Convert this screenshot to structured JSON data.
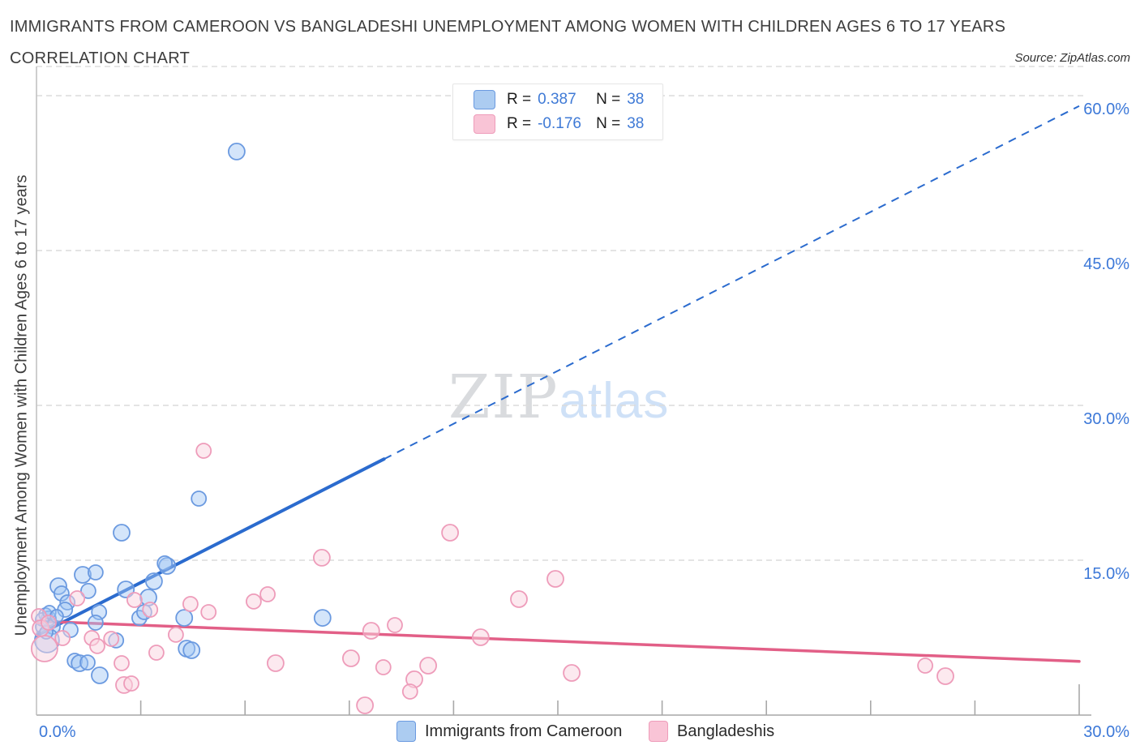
{
  "header": {
    "title": "IMMIGRANTS FROM CAMEROON VS BANGLADESHI UNEMPLOYMENT AMONG WOMEN WITH CHILDREN AGES 6 TO 17 YEARS",
    "subtitle": "CORRELATION CHART",
    "source": "Source: ZipAtlas.com"
  },
  "watermark": {
    "part1": "ZIP",
    "part2": "atlas"
  },
  "legend_box": {
    "rows": [
      {
        "series": "Immigrants from Cameroon",
        "r_label": "R =",
        "r_value": "0.387",
        "n_label": "N =",
        "n_value": "38"
      },
      {
        "series": "Bangladeshis",
        "r_label": "R =",
        "r_value": "-0.176",
        "n_label": "N =",
        "n_value": "38"
      }
    ]
  },
  "axes": {
    "y_title": "Unemployment Among Women with Children Ages 6 to 17 years",
    "x_min_label": "0.0%",
    "x_max_label": "30.0%",
    "y_tick_labels": [
      {
        "value": 60,
        "label": "60.0%"
      },
      {
        "value": 45,
        "label": "45.0%"
      },
      {
        "value": 30,
        "label": "30.0%"
      },
      {
        "value": 15,
        "label": "15.0%"
      }
    ]
  },
  "bottom_legend": {
    "items": [
      {
        "label": "Immigrants from Cameroon",
        "color": "blue"
      },
      {
        "label": "Bangladeshis",
        "color": "pink"
      }
    ]
  },
  "chart_data": {
    "type": "scatter",
    "title": "Immigrants from Cameroon vs Bangladeshi Unemployment Among Women with Children Ages 6 to 17 years",
    "xlabel": "Immigrants from Cameroon (%)",
    "ylabel": "Unemployment Among Women with Children Ages 6 to 17 years (%)",
    "xlim": [
      0,
      30
    ],
    "ylim": [
      0,
      62.8
    ],
    "x_tick_step": 3,
    "y_gridlines": [
      15,
      30,
      45,
      60
    ],
    "grid": "horizontal-dashed",
    "legend_position": "top-center",
    "series": [
      {
        "name": "Immigrants from Cameroon",
        "R": 0.387,
        "N": 38,
        "stroke": "#6b9ae0",
        "fill": "rgba(160,198,245,0.45)",
        "points": [
          [
            5.76,
            54.59,
            10
          ],
          [
            4.67,
            20.97,
            9
          ],
          [
            2.45,
            17.67,
            10
          ],
          [
            3.76,
            14.45,
            10
          ],
          [
            1.33,
            13.59,
            10
          ],
          [
            1.7,
            13.82,
            9
          ],
          [
            0.63,
            12.49,
            10
          ],
          [
            0.72,
            11.78,
            9
          ],
          [
            1.49,
            12.02,
            9
          ],
          [
            2.57,
            12.17,
            10
          ],
          [
            3.38,
            12.96,
            10
          ],
          [
            3.69,
            14.69,
            9
          ],
          [
            3.22,
            11.39,
            10
          ],
          [
            2.96,
            9.42,
            9
          ],
          [
            3.1,
            9.97,
            9
          ],
          [
            1.8,
            9.97,
            9
          ],
          [
            0.89,
            10.92,
            9
          ],
          [
            0.82,
            10.21,
            9
          ],
          [
            0.35,
            9.35,
            9
          ],
          [
            0.47,
            8.56,
            9
          ],
          [
            0.98,
            8.25,
            9
          ],
          [
            1.7,
            8.95,
            9
          ],
          [
            4.25,
            9.42,
            10
          ],
          [
            4.32,
            6.44,
            10
          ],
          [
            4.46,
            6.28,
            10
          ],
          [
            1.1,
            5.26,
            9
          ],
          [
            1.24,
            5.03,
            10
          ],
          [
            1.47,
            5.1,
            9
          ],
          [
            1.82,
            3.85,
            10
          ],
          [
            0.3,
            7.23,
            15
          ],
          [
            2.29,
            7.23,
            9
          ],
          [
            8.23,
            9.42,
            10
          ],
          [
            0.26,
            9.74,
            8
          ],
          [
            0.16,
            9.27,
            8
          ],
          [
            0.37,
            9.97,
            8
          ],
          [
            0.58,
            9.58,
            8
          ],
          [
            0.16,
            8.56,
            8
          ],
          [
            0.28,
            8.01,
            8
          ]
        ]
      },
      {
        "name": "Bangladeshis",
        "R": -0.176,
        "N": 38,
        "stroke": "#ee9cba",
        "fill": "rgba(249,212,224,0.5)",
        "points": [
          [
            4.81,
            25.6,
            9
          ],
          [
            11.9,
            17.67,
            10
          ],
          [
            8.21,
            15.24,
            10
          ],
          [
            14.93,
            13.19,
            10
          ],
          [
            13.88,
            11.23,
            10
          ],
          [
            1.17,
            11.31,
            9
          ],
          [
            3.27,
            10.21,
            9
          ],
          [
            4.43,
            10.76,
            9
          ],
          [
            4.95,
            9.97,
            9
          ],
          [
            1.59,
            7.46,
            9
          ],
          [
            1.75,
            6.68,
            9
          ],
          [
            2.15,
            7.38,
            9
          ],
          [
            2.45,
            5.03,
            9
          ],
          [
            3.45,
            6.05,
            9
          ],
          [
            4.01,
            7.78,
            9
          ],
          [
            0.75,
            7.46,
            9
          ],
          [
            0.23,
            6.44,
            16
          ],
          [
            2.52,
            2.91,
            10
          ],
          [
            2.73,
            3.06,
            9
          ],
          [
            9.63,
            8.17,
            10
          ],
          [
            10.31,
            8.72,
            9
          ],
          [
            12.78,
            7.54,
            10
          ],
          [
            9.05,
            5.5,
            10
          ],
          [
            9.98,
            4.63,
            9
          ],
          [
            11.27,
            4.79,
            10
          ],
          [
            10.87,
            3.46,
            10
          ],
          [
            10.75,
            2.28,
            9
          ],
          [
            9.45,
            0.94,
            10
          ],
          [
            15.4,
            4.08,
            10
          ],
          [
            25.57,
            4.79,
            9
          ],
          [
            26.15,
            3.77,
            10
          ],
          [
            0.07,
            9.58,
            9
          ],
          [
            0.12,
            8.4,
            10
          ],
          [
            0.35,
            8.95,
            9
          ],
          [
            2.82,
            11.15,
            9
          ],
          [
            6.65,
            11.7,
            9
          ],
          [
            6.25,
            11.0,
            9
          ],
          [
            6.88,
            5.03,
            10
          ]
        ]
      }
    ],
    "trend_lines": [
      {
        "series": "Immigrants from Cameroon",
        "color": "#2b6bce",
        "width": 4,
        "x0": 0,
        "y0": 7.7,
        "x1": 30,
        "y1": 59.0,
        "solid_until_x": 10.0
      },
      {
        "series": "Bangladeshis",
        "color": "#e25f87",
        "width": 3.5,
        "x0": 0,
        "y0": 9.1,
        "x1": 30,
        "y1": 5.2,
        "solid_until_x": 30
      }
    ]
  }
}
